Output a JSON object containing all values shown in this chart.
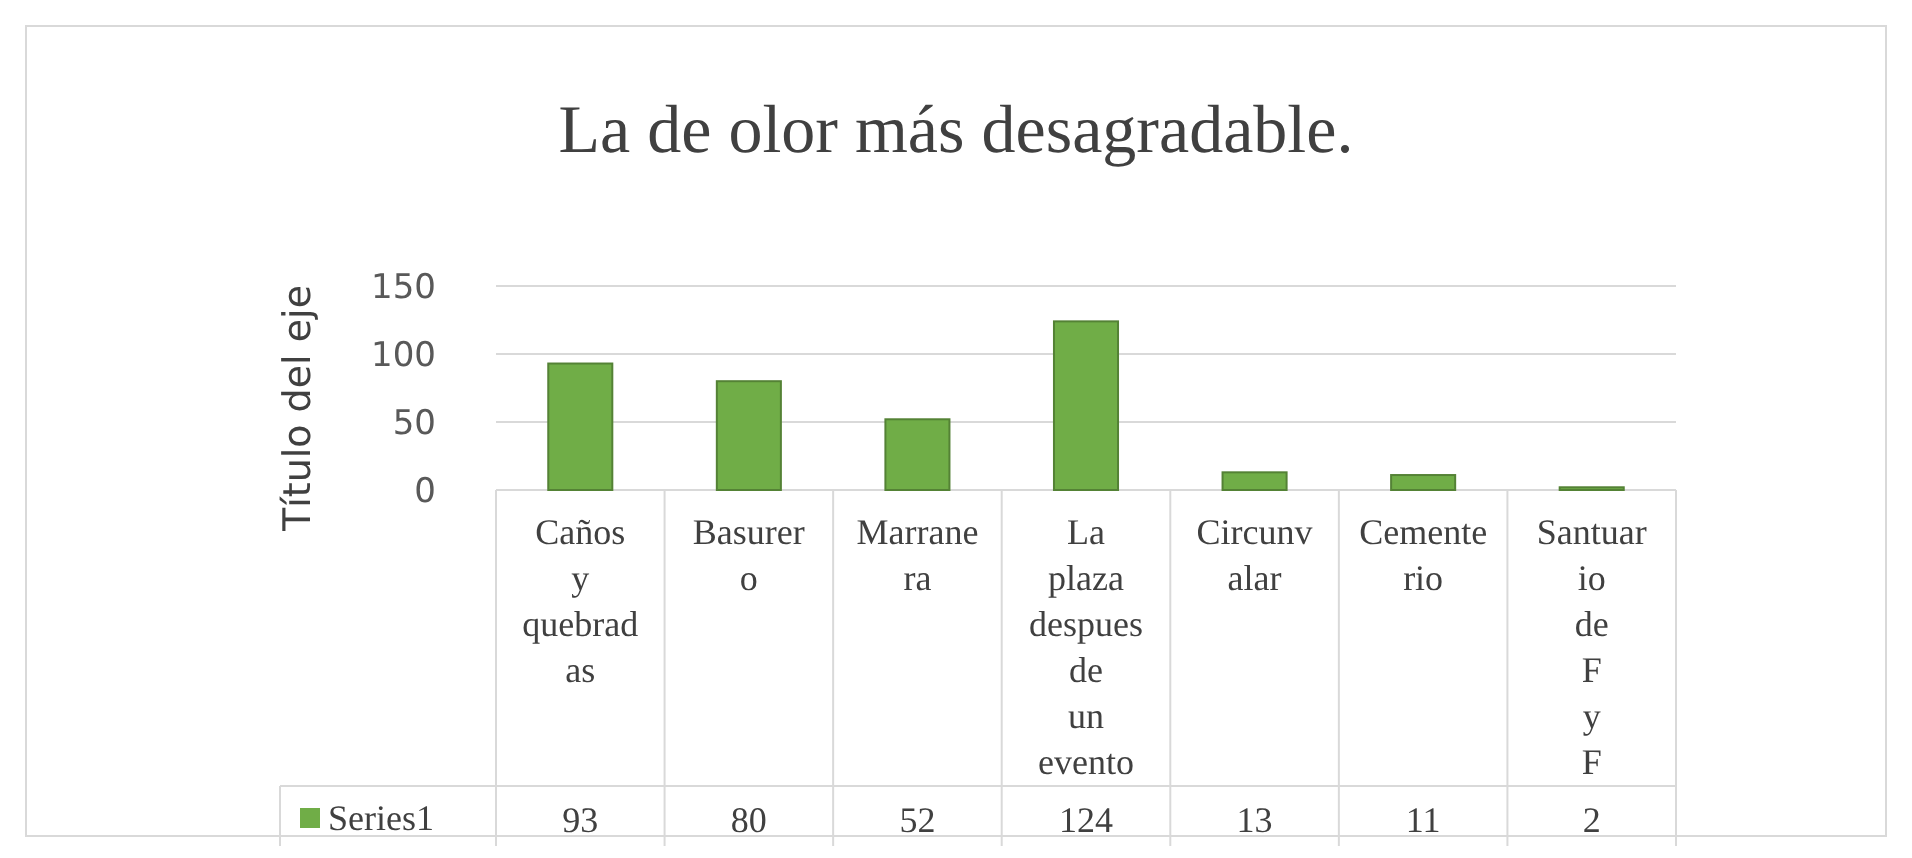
{
  "chart_data": {
    "type": "bar",
    "title": "La de olor más desagradable.",
    "ylabel": "Título del eje",
    "categories": [
      "Caños y quebradas",
      "Basurero",
      "Marranera",
      "La plaza despues de un evento",
      "Circunvalar",
      "Cementerio",
      "Santuario de F y F"
    ],
    "series": [
      {
        "name": "Series1",
        "color": "#70ad47",
        "values": [
          93,
          80,
          52,
          124,
          13,
          11,
          2
        ]
      }
    ],
    "ylim": [
      0,
      150
    ],
    "yticks": [
      0,
      50,
      100,
      150
    ],
    "grid": "y",
    "data_labels": true,
    "legend": "bottom"
  }
}
